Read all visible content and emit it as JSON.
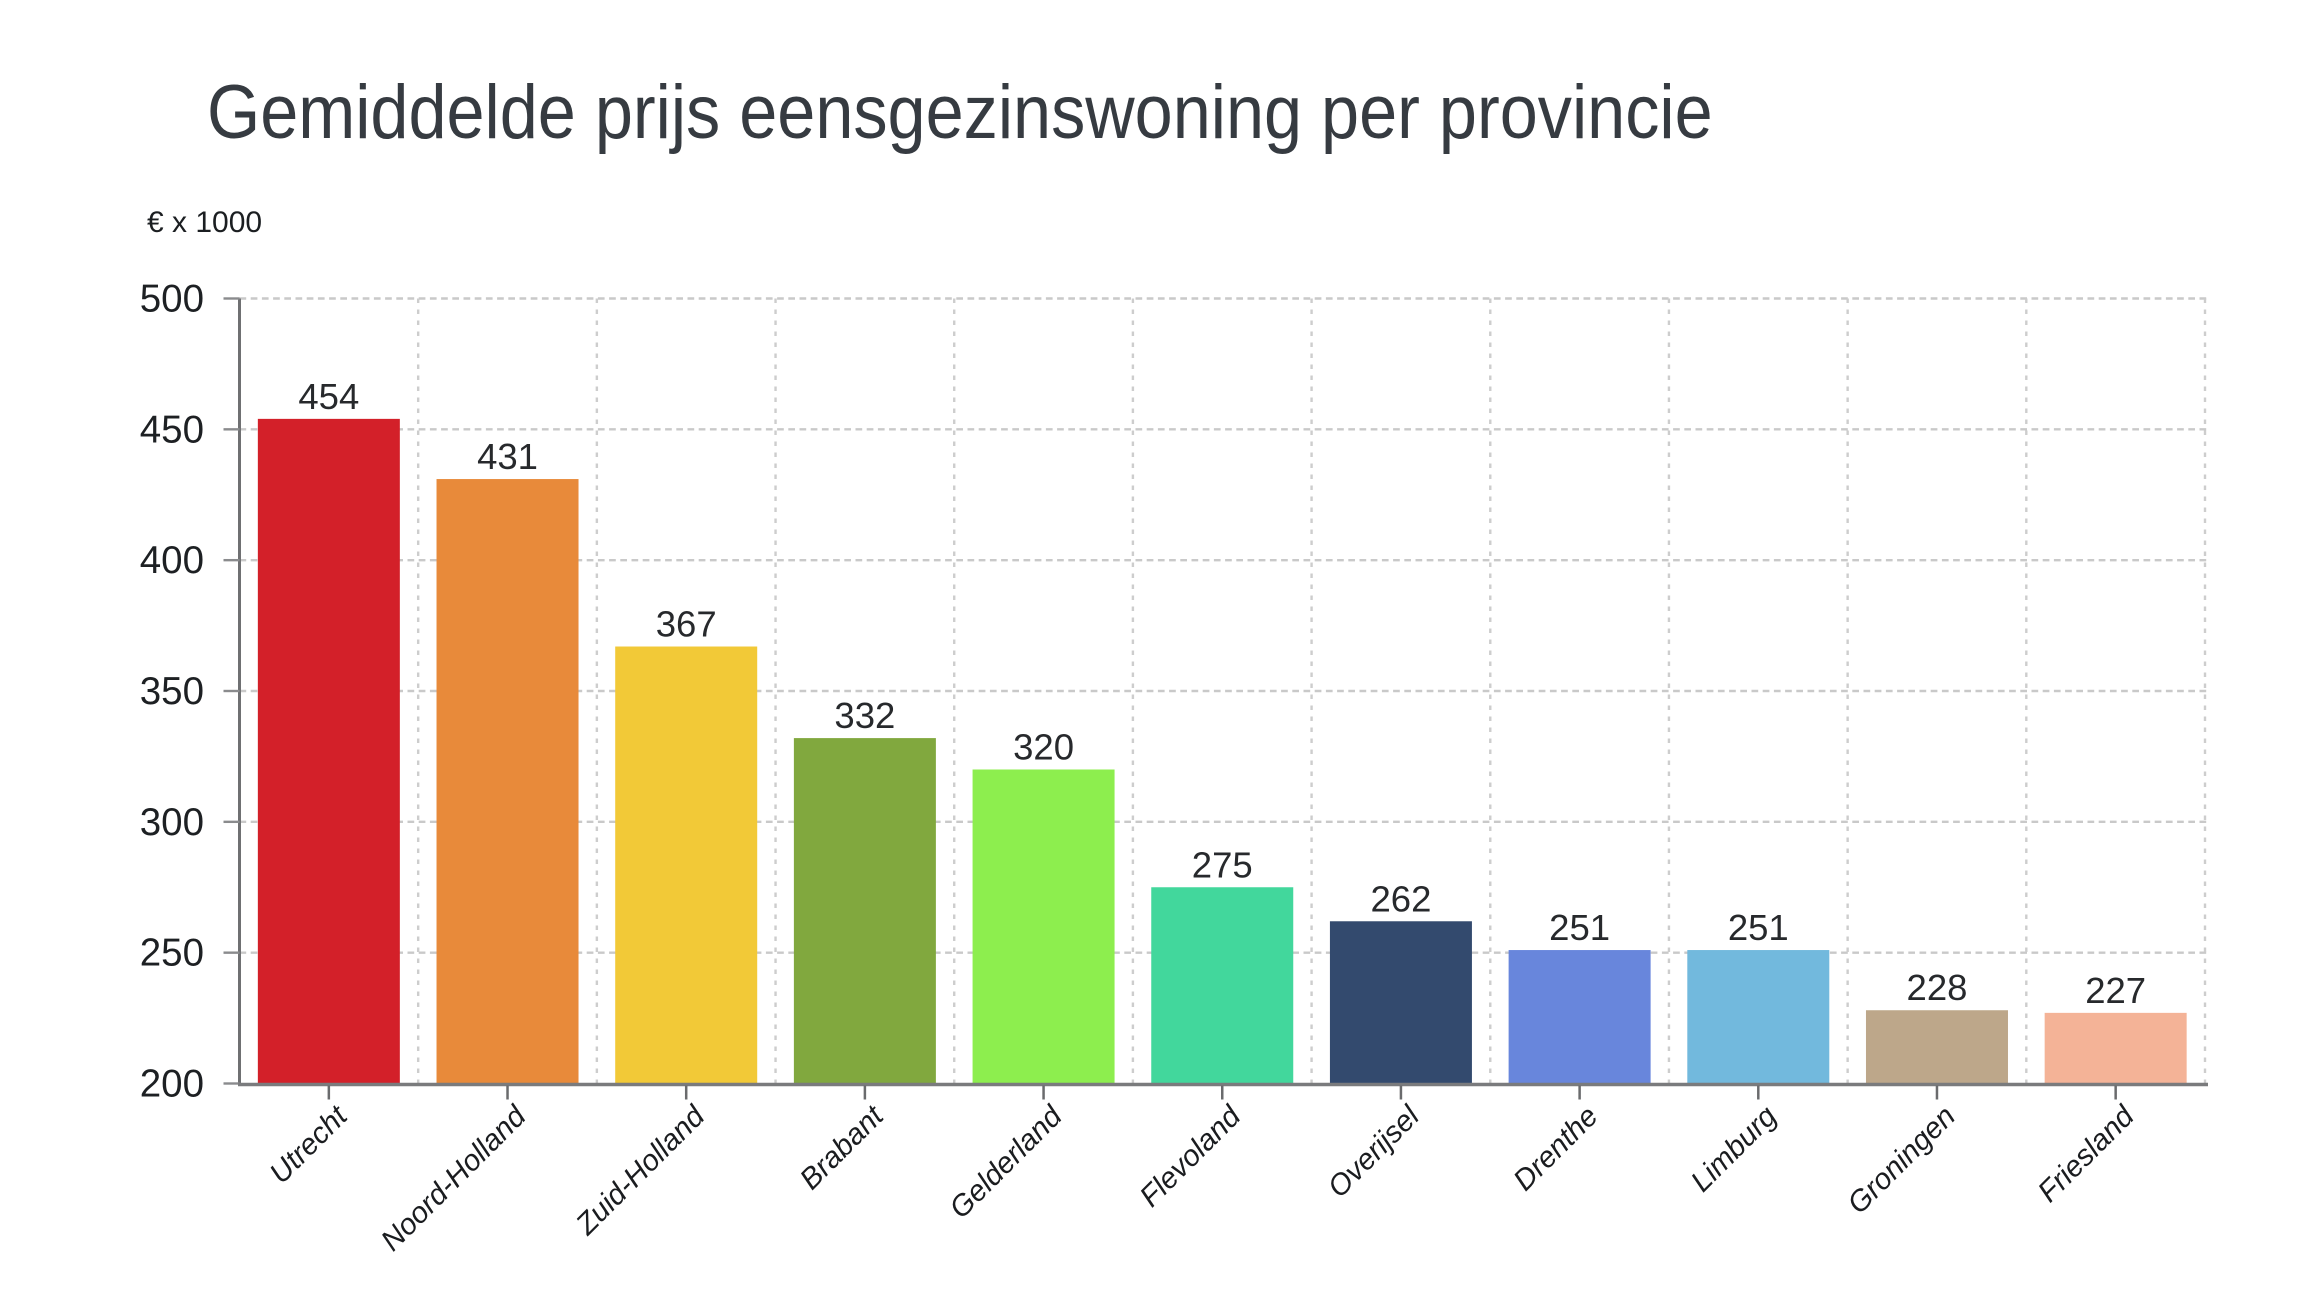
{
  "chart_data": {
    "type": "bar",
    "title": "Gemiddelde prijs eensgezinswoning per provincie",
    "ylabel": "€ x 1000",
    "categories": [
      "Utrecht",
      "Noord-Holland",
      "Zuid-Holland",
      "Brabant",
      "Gelderland",
      "Flevoland",
      "Overijsel",
      "Drenthe",
      "Limburg",
      "Groningen",
      "Friesland"
    ],
    "values": [
      454,
      431,
      367,
      332,
      320,
      275,
      262,
      251,
      251,
      228,
      227
    ],
    "bar_colors": [
      "#d32029",
      "#e88a3a",
      "#f2c937",
      "#81a83e",
      "#8dee4e",
      "#42d79c",
      "#334a6e",
      "#6886dc",
      "#72b9dd",
      "#bda78a",
      "#f4b397"
    ],
    "ylim": [
      200,
      500
    ],
    "yticks": [
      200,
      250,
      300,
      350,
      400,
      450,
      500
    ],
    "grid": "dashed",
    "legend": "none"
  },
  "colors": {
    "background": "#ffffff",
    "grid": "#c9c9c9",
    "axis": "#737476",
    "tick": "#6a6b6d",
    "tick_label": "#1d2023",
    "value_label": "#27292c",
    "title": "#363b41",
    "category_label": "#1a1c1f"
  }
}
